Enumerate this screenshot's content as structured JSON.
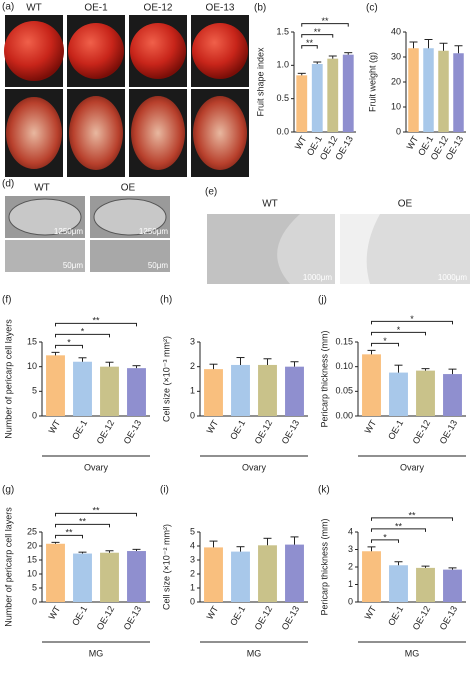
{
  "panels": {
    "a": {
      "label": "(a)",
      "columns": [
        "WT",
        "OE-1",
        "OE-12",
        "OE-13"
      ]
    },
    "d": {
      "label": "(d)",
      "columns": [
        "WT",
        "OE"
      ],
      "scale_bars": [
        "1250μm",
        "1250μm",
        "50μm",
        "50μm"
      ]
    },
    "e": {
      "label": "(e)",
      "columns": [
        "WT",
        "OE"
      ],
      "scale_bars": [
        "1000μm",
        "1000μm"
      ]
    }
  },
  "chart_data": [
    {
      "type": "bar",
      "label": "(b)",
      "ylabel": "Fruit shape index",
      "categories": [
        "WT",
        "OE-1",
        "OE-12",
        "OE-13"
      ],
      "colors": [
        "#f9bf7e",
        "#a8c8ea",
        "#c9c28a",
        "#8f8fcf"
      ],
      "values": [
        0.85,
        1.02,
        1.1,
        1.16
      ],
      "errors": [
        0.03,
        0.03,
        0.04,
        0.03
      ],
      "significance": [
        null,
        "**",
        "**",
        "**"
      ],
      "ylim": [
        0,
        1.5
      ],
      "yticks": [
        {
          "value": 0,
          "label": "0.0"
        },
        0.5,
        {
          "value": 1,
          "label": "1.0"
        },
        1.5
      ]
    },
    {
      "type": "bar",
      "label": "(c)",
      "ylabel": "Fruit weight (g)",
      "categories": [
        "WT",
        "OE-1",
        "OE-12",
        "OE-13"
      ],
      "colors": [
        "#f9bf7e",
        "#a8c8ea",
        "#c9c28a",
        "#8f8fcf"
      ],
      "values": [
        33.5,
        33.5,
        32.5,
        31.5
      ],
      "errors": [
        2.5,
        3.5,
        3,
        3
      ],
      "significance": [
        null,
        null,
        null,
        null
      ],
      "ylim": [
        0,
        40
      ],
      "yticks": [
        0,
        10,
        20,
        30,
        40
      ]
    },
    {
      "type": "bar",
      "label": "(f)",
      "ylabel": "Number of pericarp cell layers",
      "xlabel": "Ovary",
      "categories": [
        "WT",
        "OE-1",
        "OE-12",
        "OE-13"
      ],
      "colors": [
        "#f9bf7e",
        "#a8c8ea",
        "#c9c28a",
        "#8f8fcf"
      ],
      "values": [
        12.3,
        11,
        10,
        9.7
      ],
      "errors": [
        0.6,
        0.8,
        0.9,
        0.5
      ],
      "significance": [
        null,
        "*",
        "*",
        "**"
      ],
      "ylim": [
        0,
        15
      ],
      "yticks": [
        0,
        5,
        10,
        15
      ]
    },
    {
      "type": "bar",
      "label": "(h)",
      "ylabel": "Cell size (×10⁻³ mm²)",
      "xlabel": "Ovary",
      "categories": [
        "WT",
        "OE-1",
        "OE-12",
        "OE-13"
      ],
      "colors": [
        "#f9bf7e",
        "#a8c8ea",
        "#c9c28a",
        "#8f8fcf"
      ],
      "values": [
        1.9,
        2.07,
        2.07,
        2.0
      ],
      "errors": [
        0.2,
        0.3,
        0.25,
        0.2
      ],
      "significance": [
        null,
        null,
        null,
        null
      ],
      "ylim": [
        0,
        3
      ],
      "yticks": [
        0,
        1,
        2,
        3
      ]
    },
    {
      "type": "bar",
      "label": "(j)",
      "ylabel": "Pericarp thickness (mm)",
      "xlabel": "Ovary",
      "categories": [
        "WT",
        "OE-1",
        "OE-12",
        "OE-13"
      ],
      "colors": [
        "#f9bf7e",
        "#a8c8ea",
        "#c9c28a",
        "#8f8fcf"
      ],
      "values": [
        0.125,
        0.088,
        0.092,
        0.085
      ],
      "errors": [
        0.008,
        0.015,
        0.004,
        0.01
      ],
      "significance": [
        null,
        "*",
        "*",
        "*"
      ],
      "ylim": [
        0,
        0.15
      ],
      "yticks": [
        {
          "value": 0,
          "label": "0.00"
        },
        0.05,
        {
          "value": 0.1,
          "label": "0.10"
        },
        0.15
      ]
    },
    {
      "type": "bar",
      "label": "(g)",
      "ylabel": "Number of pericarp cell layers",
      "xlabel": "MG",
      "categories": [
        "WT",
        "OE-1",
        "OE-12",
        "OE-13"
      ],
      "colors": [
        "#f9bf7e",
        "#a8c8ea",
        "#c9c28a",
        "#8f8fcf"
      ],
      "values": [
        20.8,
        17.3,
        17.6,
        18.2
      ],
      "errors": [
        0.5,
        0.5,
        0.7,
        0.6
      ],
      "significance": [
        null,
        "**",
        "**",
        "**"
      ],
      "ylim": [
        0,
        25
      ],
      "yticks": [
        0,
        5,
        10,
        15,
        20,
        25
      ]
    },
    {
      "type": "bar",
      "label": "(i)",
      "ylabel": "Cell size (×10⁻² mm²)",
      "xlabel": "MG",
      "categories": [
        "WT",
        "OE-1",
        "OE-12",
        "OE-13"
      ],
      "colors": [
        "#f9bf7e",
        "#a8c8ea",
        "#c9c28a",
        "#8f8fcf"
      ],
      "values": [
        3.9,
        3.6,
        4.05,
        4.1
      ],
      "errors": [
        0.45,
        0.35,
        0.5,
        0.55
      ],
      "significance": [
        null,
        null,
        null,
        null
      ],
      "ylim": [
        0,
        5
      ],
      "yticks": [
        0,
        1,
        2,
        3,
        4,
        5
      ]
    },
    {
      "type": "bar",
      "label": "(k)",
      "ylabel": "Pericarp thickness (mm)",
      "xlabel": "MG",
      "categories": [
        "WT",
        "OE-1",
        "OE-12",
        "OE-13"
      ],
      "colors": [
        "#f9bf7e",
        "#a8c8ea",
        "#c9c28a",
        "#8f8fcf"
      ],
      "values": [
        2.9,
        2.1,
        1.95,
        1.85
      ],
      "errors": [
        0.25,
        0.2,
        0.1,
        0.1
      ],
      "significance": [
        null,
        "*",
        "**",
        "**"
      ],
      "ylim": [
        0,
        4
      ],
      "yticks": [
        0,
        1,
        2,
        3,
        4
      ]
    }
  ]
}
